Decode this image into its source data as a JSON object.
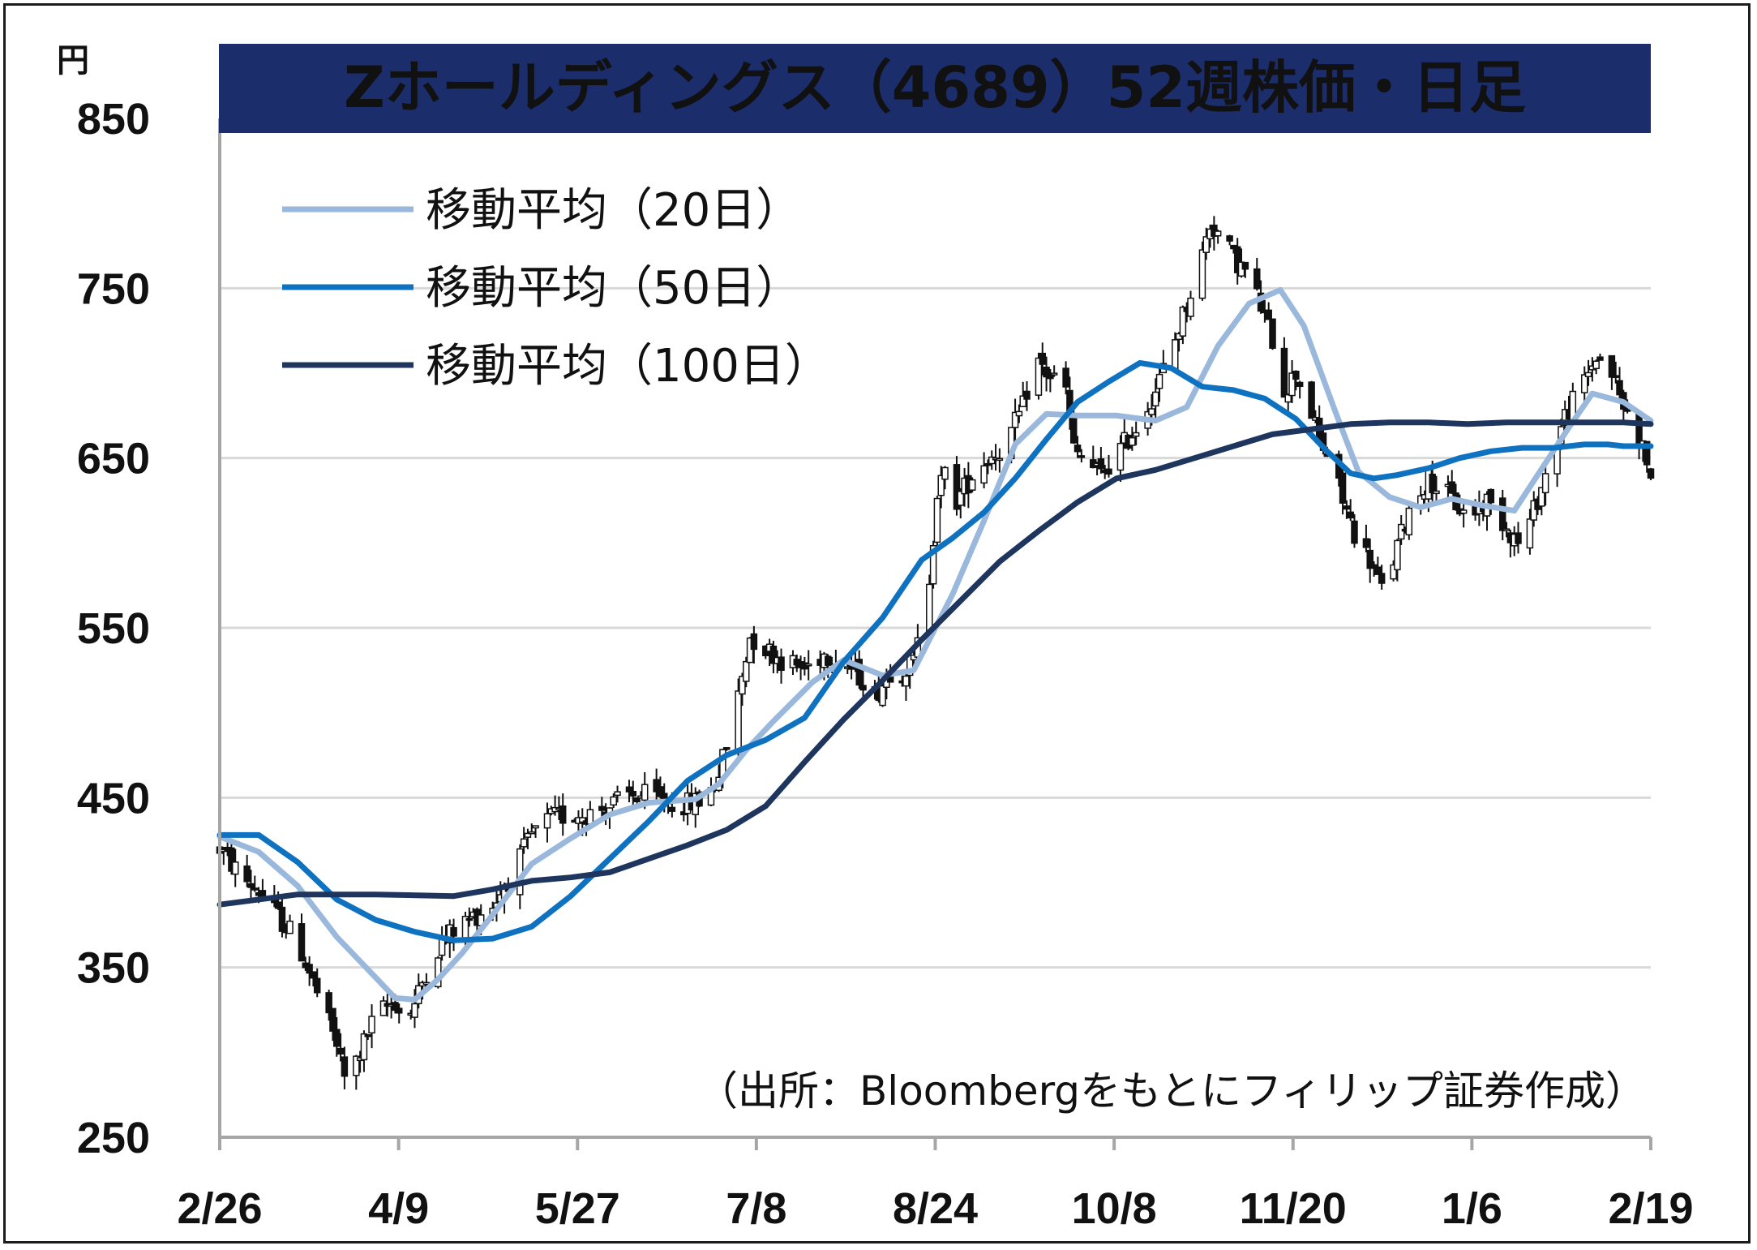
{
  "chart_data": {
    "type": "candlestick",
    "title": "Zホールディングス（4689）52週株価・日足",
    "unit_label": "円",
    "source": "（出所：Bloombergをもとにフィリップ証券作成）",
    "ylim": [
      250,
      850
    ],
    "yticks": [
      "850",
      "750",
      "650",
      "550",
      "450",
      "350",
      "250"
    ],
    "x_ticks": [
      "2/26",
      "4/9",
      "5/27",
      "7/8",
      "8/24",
      "10/8",
      "11/20",
      "1/6",
      "2/19"
    ],
    "grid": true,
    "legend_position": "top-left",
    "colors": {
      "title_bg": "#1b2d6b",
      "title_text": "#ffffff",
      "ma20": "#9ab8db",
      "ma50": "#0f72c0",
      "ma100": "#1e355e",
      "candle_down": "#111111",
      "candle_up": "#ffffff",
      "grid": "#d9d9d9"
    },
    "series": [
      {
        "name": "移動平均（20日）",
        "key": "ma20",
        "values": [
          [
            0,
            427
          ],
          [
            10,
            418
          ],
          [
            20,
            398
          ],
          [
            30,
            368
          ],
          [
            40,
            344
          ],
          [
            45,
            332
          ],
          [
            50,
            331
          ],
          [
            56,
            343
          ],
          [
            62,
            358
          ],
          [
            70,
            381
          ],
          [
            80,
            411
          ],
          [
            90,
            426
          ],
          [
            100,
            440
          ],
          [
            110,
            447
          ],
          [
            122,
            449
          ],
          [
            128,
            458
          ],
          [
            135,
            478
          ],
          [
            142,
            495
          ],
          [
            152,
            518
          ],
          [
            160,
            531
          ],
          [
            170,
            522
          ],
          [
            178,
            525
          ],
          [
            188,
            570
          ],
          [
            196,
            613
          ],
          [
            204,
            658
          ],
          [
            212,
            676
          ],
          [
            220,
            675
          ],
          [
            230,
            675
          ],
          [
            240,
            672
          ],
          [
            248,
            680
          ],
          [
            256,
            716
          ],
          [
            264,
            741
          ],
          [
            272,
            749
          ],
          [
            278,
            728
          ],
          [
            286,
            678
          ],
          [
            292,
            642
          ],
          [
            300,
            627
          ],
          [
            308,
            621
          ],
          [
            316,
            626
          ],
          [
            324,
            622
          ],
          [
            332,
            619
          ],
          [
            338,
            640
          ],
          [
            346,
            668
          ],
          [
            352,
            688
          ],
          [
            360,
            683
          ],
          [
            367,
            672
          ]
        ]
      },
      {
        "name": "移動平均（50日）",
        "key": "ma50",
        "values": [
          [
            0,
            428
          ],
          [
            10,
            428
          ],
          [
            20,
            412
          ],
          [
            30,
            390
          ],
          [
            40,
            378
          ],
          [
            50,
            371
          ],
          [
            60,
            366
          ],
          [
            70,
            367
          ],
          [
            80,
            374
          ],
          [
            90,
            392
          ],
          [
            100,
            414
          ],
          [
            110,
            436
          ],
          [
            120,
            460
          ],
          [
            130,
            475
          ],
          [
            140,
            484
          ],
          [
            150,
            497
          ],
          [
            160,
            530
          ],
          [
            170,
            556
          ],
          [
            180,
            590
          ],
          [
            188,
            603
          ],
          [
            196,
            618
          ],
          [
            204,
            638
          ],
          [
            212,
            661
          ],
          [
            220,
            683
          ],
          [
            228,
            695
          ],
          [
            236,
            706
          ],
          [
            244,
            703
          ],
          [
            252,
            692
          ],
          [
            260,
            690
          ],
          [
            268,
            685
          ],
          [
            276,
            673
          ],
          [
            284,
            654
          ],
          [
            290,
            641
          ],
          [
            296,
            638
          ],
          [
            302,
            640
          ],
          [
            310,
            644
          ],
          [
            318,
            650
          ],
          [
            326,
            654
          ],
          [
            334,
            656
          ],
          [
            342,
            656
          ],
          [
            350,
            658
          ],
          [
            356,
            658
          ],
          [
            360,
            657
          ],
          [
            367,
            657
          ]
        ]
      },
      {
        "name": "移動平均（100日）",
        "key": "ma100",
        "values": [
          [
            0,
            387
          ],
          [
            20,
            393
          ],
          [
            40,
            393
          ],
          [
            60,
            392
          ],
          [
            70,
            396
          ],
          [
            80,
            401
          ],
          [
            90,
            403
          ],
          [
            100,
            406
          ],
          [
            110,
            414
          ],
          [
            120,
            422
          ],
          [
            130,
            431
          ],
          [
            140,
            445
          ],
          [
            150,
            471
          ],
          [
            160,
            496
          ],
          [
            170,
            519
          ],
          [
            180,
            543
          ],
          [
            190,
            566
          ],
          [
            200,
            589
          ],
          [
            210,
            607
          ],
          [
            220,
            624
          ],
          [
            230,
            638
          ],
          [
            240,
            643
          ],
          [
            250,
            650
          ],
          [
            260,
            657
          ],
          [
            270,
            664
          ],
          [
            280,
            667
          ],
          [
            290,
            670
          ],
          [
            300,
            671
          ],
          [
            310,
            671
          ],
          [
            320,
            670
          ],
          [
            330,
            671
          ],
          [
            340,
            671
          ],
          [
            350,
            671
          ],
          [
            360,
            671
          ],
          [
            367,
            670
          ]
        ]
      }
    ],
    "price_path": [
      [
        0,
        420
      ],
      [
        5,
        405
      ],
      [
        10,
        395
      ],
      [
        15,
        380
      ],
      [
        20,
        365
      ],
      [
        25,
        335
      ],
      [
        30,
        305
      ],
      [
        32,
        285
      ],
      [
        35,
        295
      ],
      [
        40,
        322
      ],
      [
        45,
        330
      ],
      [
        47,
        318
      ],
      [
        50,
        328
      ],
      [
        53,
        348
      ],
      [
        57,
        365
      ],
      [
        60,
        372
      ],
      [
        65,
        380
      ],
      [
        70,
        387
      ],
      [
        75,
        405
      ],
      [
        80,
        428
      ],
      [
        85,
        438
      ],
      [
        90,
        440
      ],
      [
        95,
        441
      ],
      [
        100,
        445
      ],
      [
        105,
        451
      ],
      [
        110,
        451
      ],
      [
        115,
        447
      ],
      [
        120,
        446
      ],
      [
        125,
        450
      ],
      [
        128,
        465
      ],
      [
        130,
        480
      ],
      [
        133,
        510
      ],
      [
        136,
        545
      ],
      [
        140,
        538
      ],
      [
        145,
        530
      ],
      [
        150,
        526
      ],
      [
        155,
        535
      ],
      [
        160,
        530
      ],
      [
        165,
        520
      ],
      [
        168,
        510
      ],
      [
        172,
        525
      ],
      [
        175,
        525
      ],
      [
        178,
        530
      ],
      [
        180,
        550
      ],
      [
        182,
        580
      ],
      [
        184,
        630
      ],
      [
        186,
        640
      ],
      [
        189,
        625
      ],
      [
        193,
        640
      ],
      [
        197,
        650
      ],
      [
        200,
        655
      ],
      [
        203,
        665
      ],
      [
        206,
        680
      ],
      [
        209,
        710
      ],
      [
        212,
        700
      ],
      [
        215,
        695
      ],
      [
        217,
        690
      ],
      [
        219,
        655
      ],
      [
        222,
        648
      ],
      [
        226,
        640
      ],
      [
        230,
        652
      ],
      [
        235,
        668
      ],
      [
        240,
        690
      ],
      [
        245,
        720
      ],
      [
        250,
        755
      ],
      [
        252,
        770
      ],
      [
        254,
        788
      ],
      [
        257,
        780
      ],
      [
        260,
        768
      ],
      [
        263,
        760
      ],
      [
        266,
        745
      ],
      [
        270,
        720
      ],
      [
        273,
        690
      ],
      [
        276,
        700
      ],
      [
        279,
        685
      ],
      [
        282,
        660
      ],
      [
        285,
        648
      ],
      [
        288,
        625
      ],
      [
        292,
        600
      ],
      [
        295,
        590
      ],
      [
        298,
        572
      ],
      [
        301,
        590
      ],
      [
        305,
        620
      ],
      [
        310,
        638
      ],
      [
        315,
        628
      ],
      [
        320,
        615
      ],
      [
        325,
        625
      ],
      [
        330,
        610
      ],
      [
        333,
        600
      ],
      [
        336,
        612
      ],
      [
        340,
        640
      ],
      [
        345,
        675
      ],
      [
        350,
        695
      ],
      [
        353,
        710
      ],
      [
        357,
        700
      ],
      [
        360,
        680
      ],
      [
        363,
        670
      ],
      [
        367,
        640
      ]
    ]
  }
}
